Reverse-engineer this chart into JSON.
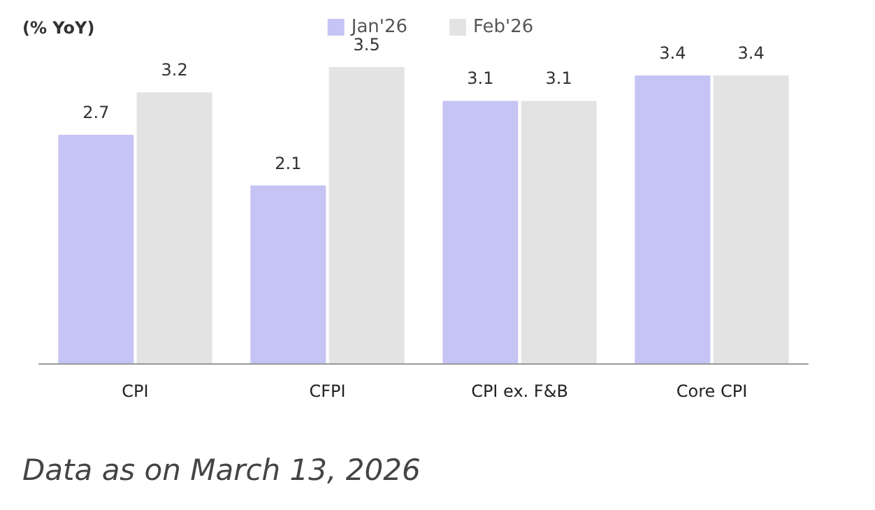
{
  "chart_data": {
    "type": "bar",
    "ylabel": "(% YoY)",
    "categories": [
      "CPI",
      "CFPI",
      "CPI ex. F&B",
      "Core CPI"
    ],
    "series": [
      {
        "name": "Jan'26",
        "color": "#c6c4f4",
        "values": [
          2.7,
          2.1,
          3.1,
          3.4
        ]
      },
      {
        "name": "Feb'26",
        "color": "#e3e3e3",
        "values": [
          3.2,
          3.5,
          3.1,
          3.4
        ]
      }
    ],
    "tick_labels": "x",
    "data_labels": true,
    "legend": "top",
    "annotations": [
      "Data as on March 13, 2026"
    ]
  }
}
